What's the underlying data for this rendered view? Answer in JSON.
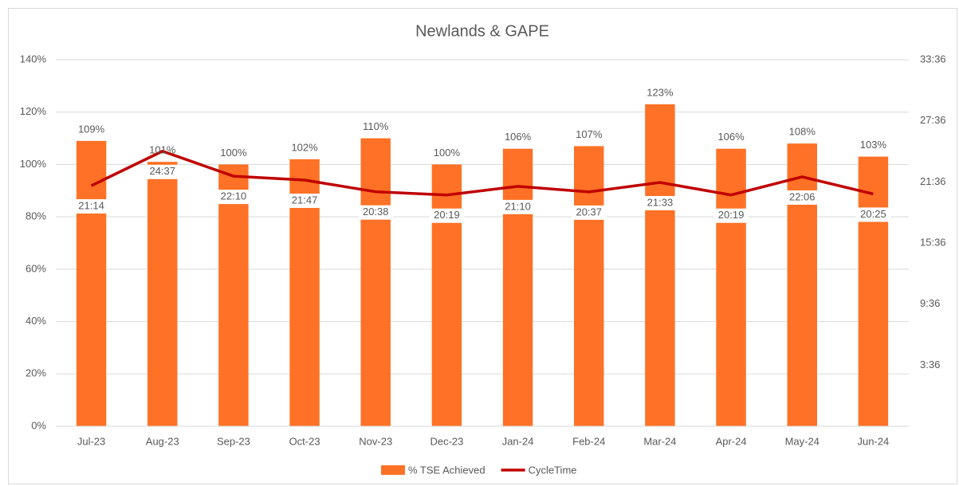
{
  "chart_data": {
    "type": "bar-line",
    "title": "Newlands  & GAPE",
    "categories": [
      "Jul-23",
      "Aug-23",
      "Sep-23",
      "Oct-23",
      "Nov-23",
      "Dec-23",
      "Jan-24",
      "Feb-24",
      "Mar-24",
      "Apr-24",
      "May-24",
      "Jun-24"
    ],
    "series": [
      {
        "name": "% TSE Achieved",
        "type": "bar",
        "color": "#ff7126",
        "values": [
          109,
          101,
          100,
          102,
          110,
          100,
          106,
          107,
          123,
          106,
          108,
          103
        ],
        "value_labels": [
          "109%",
          "101%",
          "100%",
          "102%",
          "110%",
          "100%",
          "106%",
          "107%",
          "123%",
          "106%",
          "108%",
          "103%"
        ]
      },
      {
        "name": "CycleTime",
        "type": "line",
        "axis": "y2",
        "color": "#c00000",
        "values": [
          21.233,
          24.617,
          22.167,
          21.783,
          20.633,
          20.317,
          21.167,
          20.617,
          21.55,
          20.317,
          22.1,
          20.417
        ],
        "value_labels": [
          "21:14",
          "24:37",
          "22:10",
          "21:47",
          "20:38",
          "20:19",
          "21:10",
          "20:37",
          "21:33",
          "20:19",
          "22:06",
          "20:25"
        ]
      }
    ],
    "ylim": [
      0,
      140
    ],
    "yticks": [
      {
        "value": 0,
        "label": "0%"
      },
      {
        "value": 20,
        "label": "20%"
      },
      {
        "value": 40,
        "label": "40%"
      },
      {
        "value": 60,
        "label": "60%"
      },
      {
        "value": 80,
        "label": "80%"
      },
      {
        "value": 100,
        "label": "100%"
      },
      {
        "value": 120,
        "label": "120%"
      },
      {
        "value": 140,
        "label": "140%"
      }
    ],
    "y2lim": [
      -2.4,
      33.6
    ],
    "y2ticks": [
      {
        "value": 3.6,
        "label": "3:36"
      },
      {
        "value": 9.6,
        "label": "9:36"
      },
      {
        "value": 15.6,
        "label": "15:36"
      },
      {
        "value": 21.6,
        "label": "21:36"
      },
      {
        "value": 27.6,
        "label": "27:36"
      },
      {
        "value": 33.6,
        "label": "33:36"
      }
    ],
    "grid": true,
    "legend": "bottom"
  }
}
